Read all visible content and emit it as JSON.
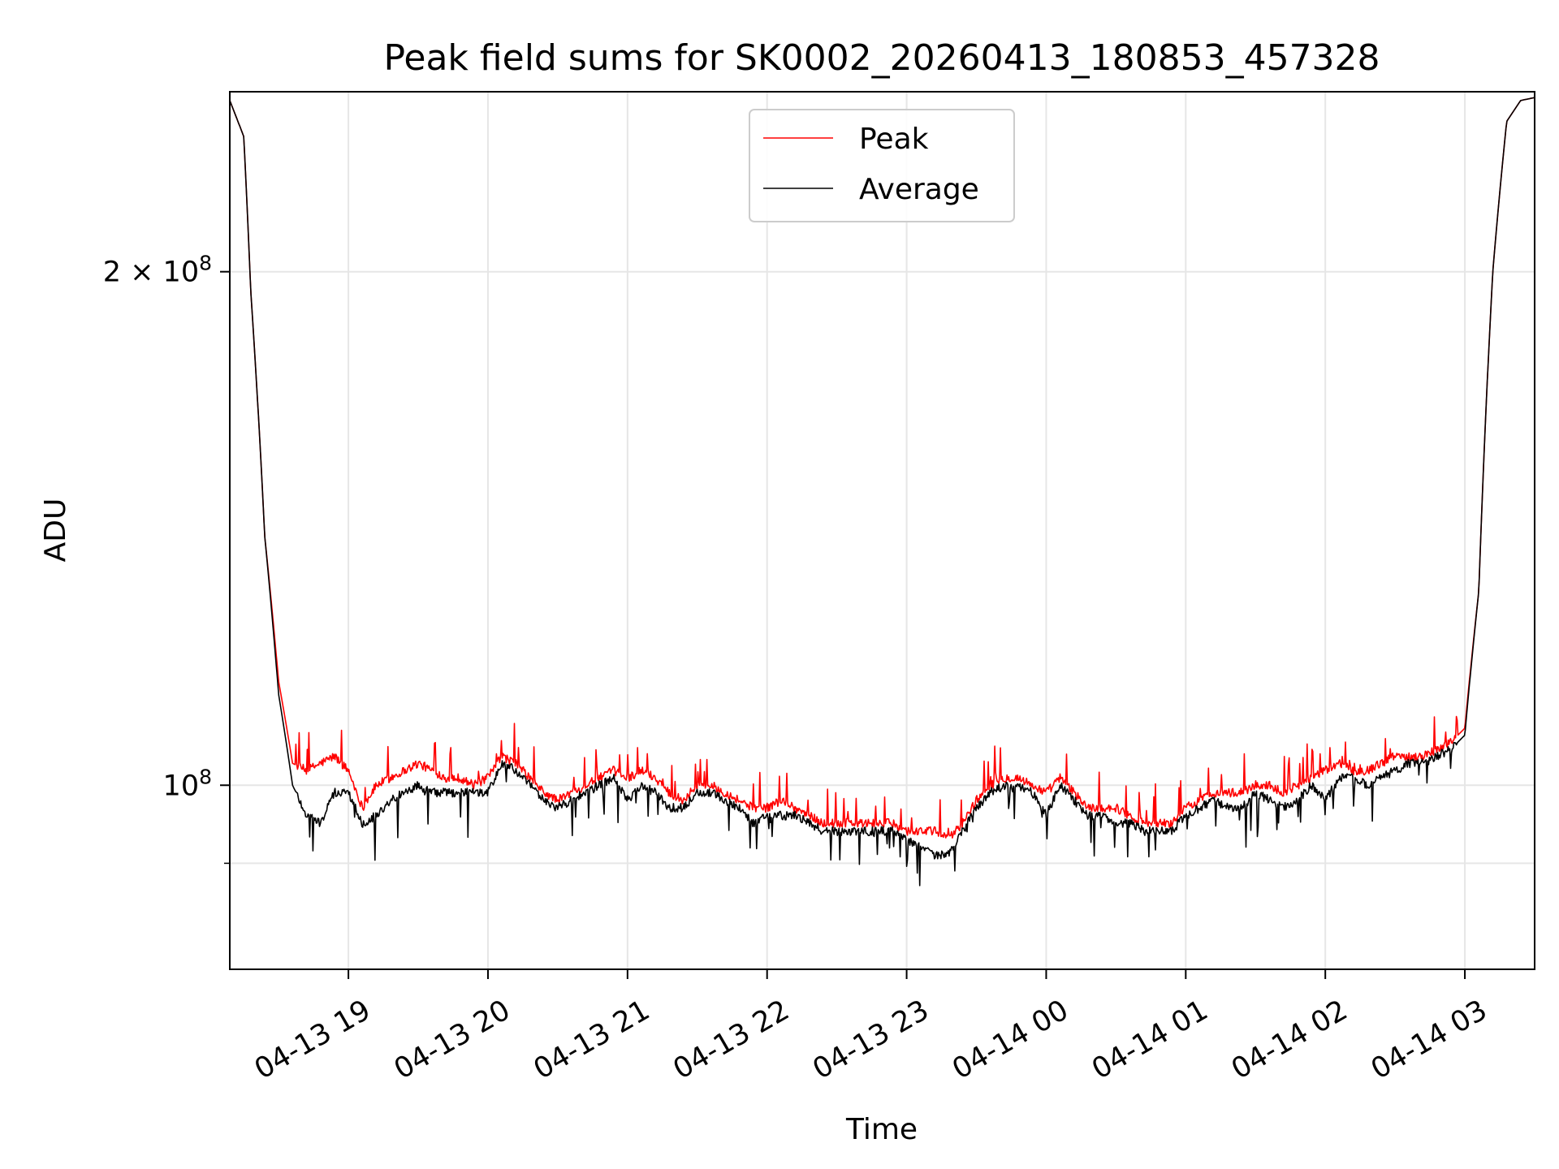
{
  "chart_data": {
    "type": "line",
    "title": "Peak field sums for SK0002_20260413_180853_457328",
    "xlabel": "Time",
    "ylabel": "ADU",
    "yscale": "log",
    "ylim": [
      78000000,
      255000000
    ],
    "xlim_hours": [
      18.15,
      3.5
    ],
    "grid": true,
    "legend_position": "upper center",
    "x_ticks": [
      {
        "hour": 19,
        "label": "04-13 19"
      },
      {
        "hour": 20,
        "label": "04-13 20"
      },
      {
        "hour": 21,
        "label": "04-13 21"
      },
      {
        "hour": 22,
        "label": "04-13 22"
      },
      {
        "hour": 23,
        "label": "04-13 23"
      },
      {
        "hour": 24,
        "label": "04-14 00"
      },
      {
        "hour": 25,
        "label": "04-14 01"
      },
      {
        "hour": 26,
        "label": "04-14 02"
      },
      {
        "hour": 27,
        "label": "04-14 03"
      }
    ],
    "y_major_ticks": [
      {
        "value": 100000000,
        "base": "10",
        "exp": "8",
        "mult": ""
      },
      {
        "value": 200000000,
        "base": "10",
        "exp": "8",
        "mult": "2 × "
      }
    ],
    "y_minor_ticks": [
      90000000
    ],
    "series": [
      {
        "name": "Peak",
        "color": "#ff0000",
        "x_hours": [
          18.15,
          18.25,
          18.3,
          18.4,
          18.5,
          18.6,
          18.7,
          18.8,
          18.9,
          19.0,
          19.1,
          19.2,
          19.3,
          19.4,
          19.5,
          19.6,
          19.7,
          19.8,
          19.9,
          20.0,
          20.1,
          20.2,
          20.3,
          20.4,
          20.5,
          20.6,
          20.7,
          20.8,
          20.9,
          21.0,
          21.1,
          21.2,
          21.3,
          21.4,
          21.5,
          21.6,
          21.7,
          21.8,
          21.9,
          22.0,
          22.1,
          22.2,
          22.3,
          22.4,
          22.5,
          22.6,
          22.7,
          22.8,
          22.9,
          23.0,
          23.1,
          23.2,
          23.3,
          23.4,
          23.5,
          23.6,
          23.7,
          23.8,
          23.9,
          24.0,
          24.1,
          24.2,
          24.3,
          24.4,
          24.5,
          24.6,
          24.7,
          24.8,
          24.9,
          25.0,
          25.1,
          25.2,
          25.3,
          25.4,
          25.5,
          25.6,
          25.7,
          25.8,
          25.9,
          26.0,
          26.1,
          26.2,
          26.3,
          26.4,
          26.5,
          26.6,
          26.7,
          26.8,
          26.9,
          27.0,
          27.1,
          27.2,
          27.3,
          27.4,
          27.5
        ],
        "values": [
          252000000,
          240000000,
          195000000,
          140000000,
          115000000,
          103000000,
          102000000,
          103000000,
          104000000,
          102000000,
          97000000,
          100000000,
          101000000,
          102000000,
          103000000,
          102000000,
          101000000,
          101000000,
          100000000,
          101000000,
          104000000,
          103000000,
          101000000,
          99000000,
          98000000,
          99000000,
          100000000,
          101000000,
          102000000,
          101000000,
          102000000,
          101000000,
          99000000,
          98000000,
          100000000,
          100000000,
          99000000,
          98000000,
          97000000,
          97000000,
          98000000,
          97000000,
          96000000,
          95000000,
          95000000,
          95000000,
          95000000,
          95000000,
          95000000,
          94000000,
          94000000,
          94000000,
          93000000,
          95000000,
          98000000,
          100000000,
          101000000,
          101000000,
          100000000,
          99000000,
          101000000,
          99000000,
          97000000,
          97000000,
          97000000,
          96000000,
          95000000,
          95000000,
          95000000,
          97000000,
          98000000,
          99000000,
          99000000,
          99000000,
          100000000,
          100000000,
          99000000,
          100000000,
          101000000,
          102000000,
          103000000,
          102000000,
          102000000,
          103000000,
          104000000,
          104000000,
          104000000,
          105000000,
          106000000,
          108000000,
          130000000,
          200000000,
          245000000,
          252000000,
          253000000
        ]
      },
      {
        "name": "Average",
        "color": "#000000",
        "x_hours": [
          18.15,
          18.25,
          18.3,
          18.4,
          18.5,
          18.6,
          18.7,
          18.8,
          18.9,
          19.0,
          19.1,
          19.2,
          19.3,
          19.4,
          19.5,
          19.6,
          19.7,
          19.8,
          19.9,
          20.0,
          20.1,
          20.2,
          20.3,
          20.4,
          20.5,
          20.6,
          20.7,
          20.8,
          20.9,
          21.0,
          21.1,
          21.2,
          21.3,
          21.4,
          21.5,
          21.6,
          21.7,
          21.8,
          21.9,
          22.0,
          22.1,
          22.2,
          22.3,
          22.4,
          22.5,
          22.6,
          22.7,
          22.8,
          22.9,
          23.0,
          23.1,
          23.2,
          23.3,
          23.4,
          23.5,
          23.6,
          23.7,
          23.8,
          23.9,
          24.0,
          24.1,
          24.2,
          24.3,
          24.4,
          24.5,
          24.6,
          24.7,
          24.8,
          24.9,
          25.0,
          25.1,
          25.2,
          25.3,
          25.4,
          25.5,
          25.6,
          25.7,
          25.8,
          25.9,
          26.0,
          26.1,
          26.2,
          26.3,
          26.4,
          26.5,
          26.6,
          26.7,
          26.8,
          26.9,
          27.0,
          27.1,
          27.2,
          27.3,
          27.4,
          27.5
        ],
        "values": [
          252000000,
          240000000,
          195000000,
          140000000,
          113000000,
          100000000,
          96000000,
          95000000,
          99000000,
          99000000,
          95000000,
          96000000,
          98000000,
          99000000,
          100000000,
          99000000,
          99000000,
          99000000,
          99000000,
          99000000,
          103000000,
          102000000,
          100000000,
          98000000,
          97000000,
          98000000,
          99000000,
          100000000,
          101000000,
          98000000,
          100000000,
          99000000,
          97000000,
          97000000,
          99000000,
          99000000,
          98000000,
          97000000,
          95000000,
          96000000,
          96000000,
          96000000,
          95000000,
          94000000,
          94000000,
          94000000,
          94000000,
          94000000,
          94000000,
          93000000,
          92000000,
          91000000,
          91000000,
          94000000,
          97000000,
          99000000,
          100000000,
          100000000,
          99000000,
          96000000,
          100000000,
          98000000,
          96000000,
          96000000,
          95000000,
          95000000,
          94000000,
          94000000,
          94000000,
          96000000,
          97000000,
          98000000,
          97000000,
          97000000,
          99000000,
          98000000,
          97000000,
          98000000,
          100000000,
          98000000,
          101000000,
          101000000,
          100000000,
          101000000,
          102000000,
          103000000,
          103000000,
          104000000,
          105000000,
          107000000,
          130000000,
          200000000,
          245000000,
          252000000,
          253000000
        ]
      }
    ]
  }
}
